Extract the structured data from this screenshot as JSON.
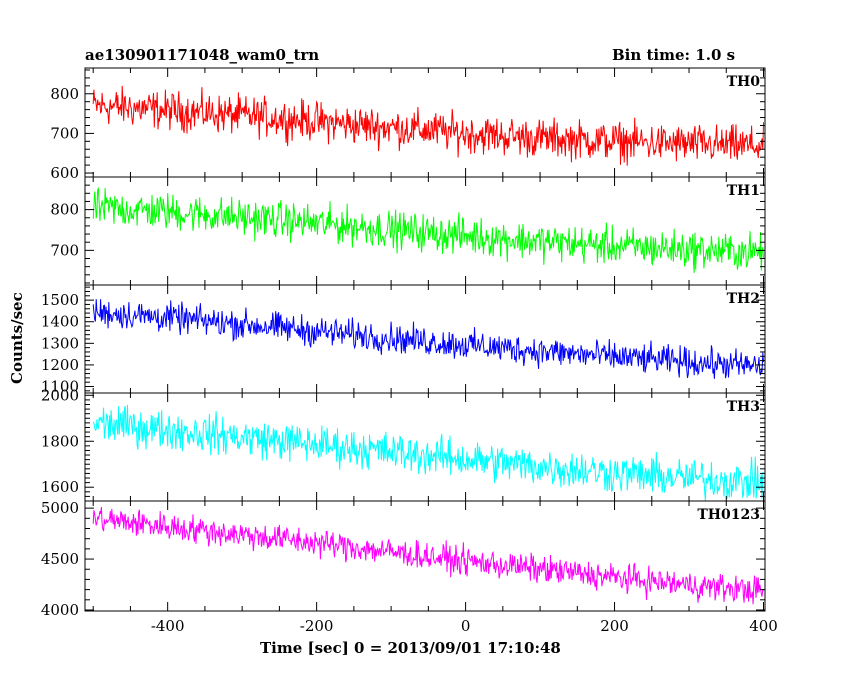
{
  "header": {
    "title": "ae130901171048_wam0_trn",
    "bin_time": "Bin time: 1.0 s"
  },
  "axes": {
    "xlabel": "Time [sec] 0 = 2013/09/01 17:10:48",
    "ylabel": "Counts/sec"
  },
  "chart_data": [
    {
      "type": "line",
      "name": "TH0",
      "color": "#ff0000",
      "xlim": [
        -511,
        402
      ],
      "ylim": [
        590,
        865
      ],
      "yticks": [
        600,
        700,
        800
      ],
      "x": [
        -500,
        -450,
        -400,
        -350,
        -300,
        -250,
        -200,
        -150,
        -100,
        -50,
        0,
        50,
        100,
        150,
        200,
        250,
        300,
        350,
        400
      ],
      "y": [
        770,
        765,
        758,
        752,
        745,
        738,
        730,
        722,
        715,
        708,
        700,
        694,
        688,
        684,
        680,
        676,
        673,
        670,
        668
      ],
      "noise_amplitude": 32
    },
    {
      "type": "line",
      "name": "TH1",
      "color": "#00ff00",
      "xlim": [
        -511,
        402
      ],
      "ylim": [
        615,
        880
      ],
      "yticks": [
        700,
        800
      ],
      "x": [
        -500,
        -450,
        -400,
        -350,
        -300,
        -250,
        -200,
        -150,
        -100,
        -50,
        0,
        50,
        100,
        150,
        200,
        250,
        300,
        350,
        400
      ],
      "y": [
        805,
        800,
        795,
        788,
        781,
        774,
        766,
        759,
        751,
        743,
        736,
        729,
        722,
        716,
        711,
        706,
        702,
        698,
        695
      ],
      "noise_amplitude": 30
    },
    {
      "type": "line",
      "name": "TH2",
      "color": "#0000ff",
      "xlim": [
        -511,
        402
      ],
      "ylim": [
        1070,
        1570
      ],
      "yticks": [
        1100,
        1200,
        1300,
        1400,
        1500
      ],
      "x": [
        -500,
        -450,
        -400,
        -350,
        -300,
        -250,
        -200,
        -150,
        -100,
        -50,
        0,
        50,
        100,
        150,
        200,
        250,
        300,
        350,
        400
      ],
      "y": [
        1445,
        1432,
        1418,
        1403,
        1388,
        1372,
        1356,
        1340,
        1324,
        1308,
        1293,
        1278,
        1264,
        1250,
        1237,
        1225,
        1213,
        1202,
        1192
      ],
      "noise_amplitude": 45
    },
    {
      "type": "line",
      "name": "TH3",
      "color": "#00ffff",
      "xlim": [
        -511,
        402
      ],
      "ylim": [
        1540,
        2010
      ],
      "yticks": [
        1600,
        1800,
        2000
      ],
      "x": [
        -500,
        -450,
        -400,
        -350,
        -300,
        -250,
        -200,
        -150,
        -100,
        -50,
        0,
        50,
        100,
        150,
        200,
        250,
        300,
        350,
        400
      ],
      "y": [
        1880,
        1865,
        1850,
        1834,
        1818,
        1802,
        1786,
        1770,
        1754,
        1738,
        1722,
        1706,
        1690,
        1676,
        1662,
        1650,
        1640,
        1630,
        1622
      ],
      "noise_amplitude": 55
    },
    {
      "type": "line",
      "name": "TH0123",
      "color": "#ff00ff",
      "xlim": [
        -511,
        402
      ],
      "ylim": [
        3990,
        5070
      ],
      "yticks": [
        4000,
        4500,
        5000
      ],
      "x": [
        -500,
        -450,
        -400,
        -350,
        -300,
        -250,
        -200,
        -150,
        -100,
        -50,
        0,
        50,
        100,
        150,
        200,
        250,
        300,
        350,
        400
      ],
      "y": [
        4900,
        4860,
        4820,
        4780,
        4740,
        4700,
        4660,
        4615,
        4570,
        4525,
        4480,
        4440,
        4400,
        4360,
        4320,
        4280,
        4245,
        4215,
        4190
      ],
      "noise_amplitude": 90
    }
  ],
  "xticks": [
    -400,
    -200,
    0,
    200,
    400
  ]
}
